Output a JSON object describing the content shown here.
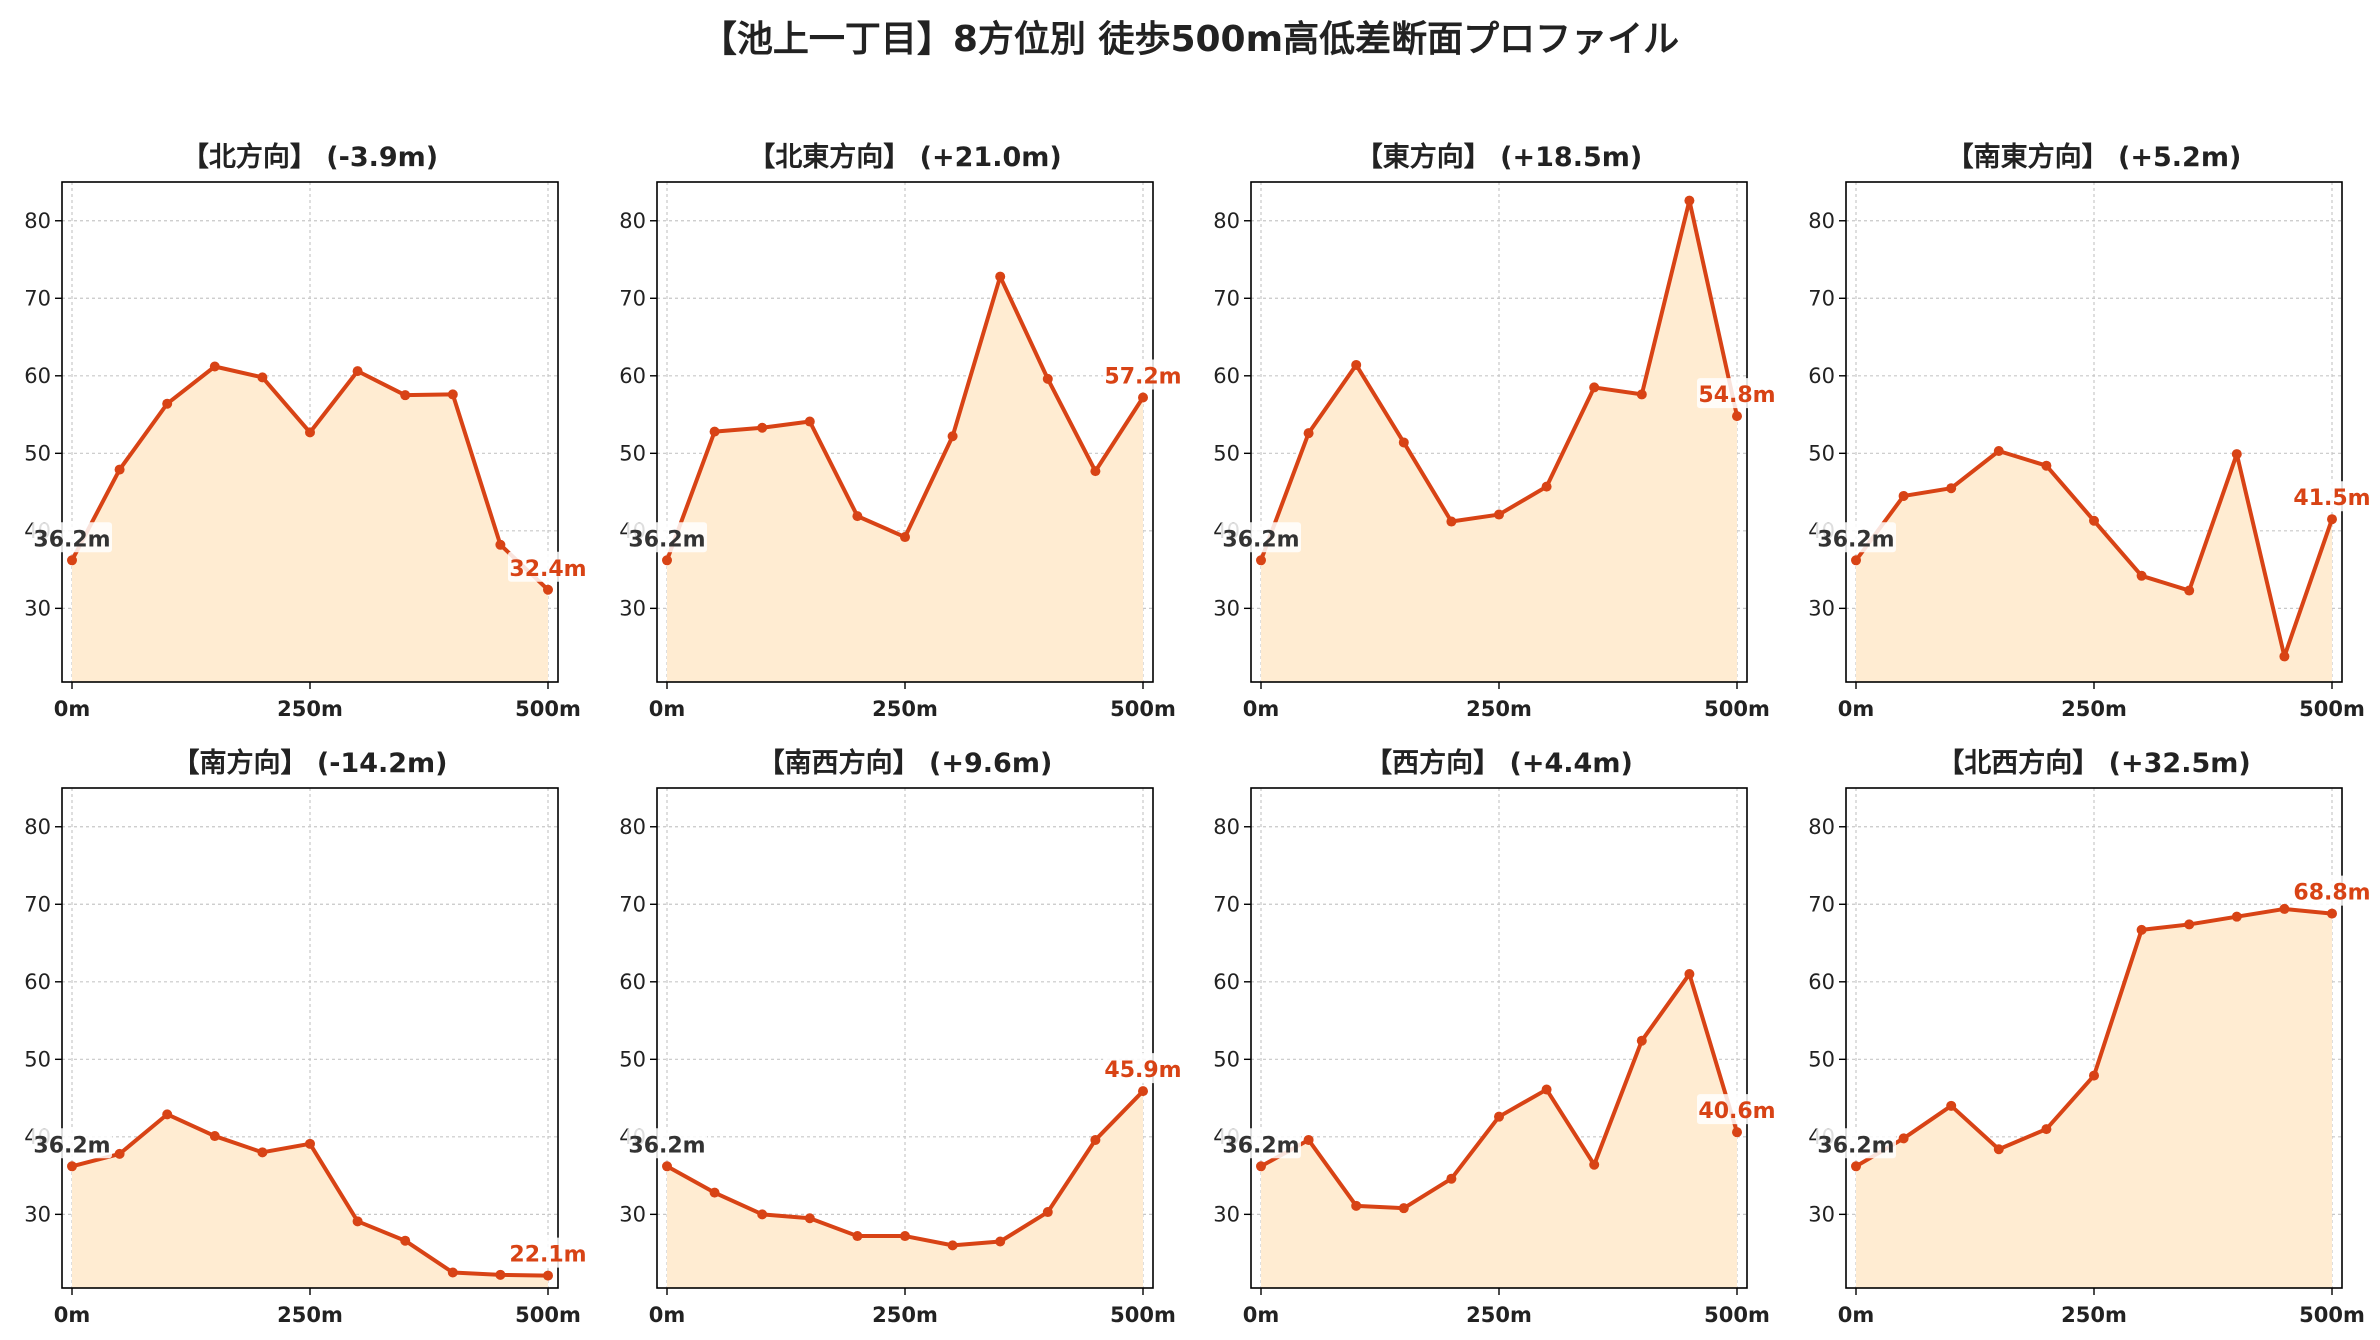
{
  "title": "【池上一丁目】8方位別 徒歩500m高低差断面プロファイル",
  "colors": {
    "line": "#d84315",
    "fill": "#ffecd2",
    "grid": "#c8c8c8",
    "start_label": "#333333"
  },
  "chart_data": [
    {
      "type": "area",
      "title": "【北方向】 (-3.9m)",
      "x": [
        0,
        50,
        100,
        150,
        200,
        250,
        300,
        350,
        400,
        450,
        500
      ],
      "y": [
        36.2,
        47.9,
        56.4,
        61.2,
        59.8,
        52.7,
        60.6,
        57.5,
        57.6,
        38.2,
        32.4
      ],
      "ylim": [
        20.5,
        85
      ],
      "yticks": [
        30,
        40,
        50,
        60,
        70,
        80
      ],
      "xticks": [
        0,
        250,
        500
      ],
      "xtick_labels": [
        "0m",
        "250m",
        "500m"
      ],
      "start_label": "36.2m",
      "end_label": "32.4m",
      "grid": true
    },
    {
      "type": "area",
      "title": "【北東方向】 (+21.0m)",
      "x": [
        0,
        50,
        100,
        150,
        200,
        250,
        300,
        350,
        400,
        450,
        500
      ],
      "y": [
        36.2,
        52.8,
        53.3,
        54.1,
        41.9,
        39.2,
        52.2,
        72.8,
        59.6,
        47.7,
        57.2
      ],
      "ylim": [
        20.5,
        85
      ],
      "yticks": [
        30,
        40,
        50,
        60,
        70,
        80
      ],
      "xticks": [
        0,
        250,
        500
      ],
      "xtick_labels": [
        "0m",
        "250m",
        "500m"
      ],
      "start_label": "36.2m",
      "end_label": "57.2m",
      "grid": true
    },
    {
      "type": "area",
      "title": "【東方向】 (+18.5m)",
      "x": [
        0,
        50,
        100,
        150,
        200,
        250,
        300,
        350,
        400,
        450,
        500
      ],
      "y": [
        36.2,
        52.6,
        61.4,
        51.4,
        41.2,
        42.1,
        45.7,
        58.5,
        57.6,
        82.6,
        54.8
      ],
      "ylim": [
        20.5,
        85
      ],
      "yticks": [
        30,
        40,
        50,
        60,
        70,
        80
      ],
      "xticks": [
        0,
        250,
        500
      ],
      "xtick_labels": [
        "0m",
        "250m",
        "500m"
      ],
      "start_label": "36.2m",
      "end_label": "54.8m",
      "grid": true
    },
    {
      "type": "area",
      "title": "【南東方向】 (+5.2m)",
      "x": [
        0,
        50,
        100,
        150,
        200,
        250,
        300,
        350,
        400,
        450,
        500
      ],
      "y": [
        36.2,
        44.5,
        45.5,
        50.3,
        48.4,
        41.3,
        34.2,
        32.3,
        49.9,
        23.8,
        41.5
      ],
      "ylim": [
        20.5,
        85
      ],
      "yticks": [
        30,
        40,
        50,
        60,
        70,
        80
      ],
      "xticks": [
        0,
        250,
        500
      ],
      "xtick_labels": [
        "0m",
        "250m",
        "500m"
      ],
      "start_label": "36.2m",
      "end_label": "41.5m",
      "grid": true
    },
    {
      "type": "area",
      "title": "【南方向】 (-14.2m)",
      "x": [
        0,
        50,
        100,
        150,
        200,
        250,
        300,
        350,
        400,
        450,
        500
      ],
      "y": [
        36.2,
        37.8,
        42.9,
        40.1,
        38.0,
        39.1,
        29.1,
        26.6,
        22.5,
        22.2,
        22.1
      ],
      "ylim": [
        20.5,
        85
      ],
      "yticks": [
        30,
        40,
        50,
        60,
        70,
        80
      ],
      "xticks": [
        0,
        250,
        500
      ],
      "xtick_labels": [
        "0m",
        "250m",
        "500m"
      ],
      "start_label": "36.2m",
      "end_label": "22.1m",
      "grid": true
    },
    {
      "type": "area",
      "title": "【南西方向】 (+9.6m)",
      "x": [
        0,
        50,
        100,
        150,
        200,
        250,
        300,
        350,
        400,
        450,
        500
      ],
      "y": [
        36.2,
        32.8,
        30.0,
        29.5,
        27.2,
        27.2,
        26.0,
        26.5,
        30.3,
        39.6,
        45.9
      ],
      "ylim": [
        20.5,
        85
      ],
      "yticks": [
        30,
        40,
        50,
        60,
        70,
        80
      ],
      "xticks": [
        0,
        250,
        500
      ],
      "xtick_labels": [
        "0m",
        "250m",
        "500m"
      ],
      "start_label": "36.2m",
      "end_label": "45.9m",
      "grid": true
    },
    {
      "type": "area",
      "title": "【西方向】 (+4.4m)",
      "x": [
        0,
        50,
        100,
        150,
        200,
        250,
        300,
        350,
        400,
        450,
        500
      ],
      "y": [
        36.2,
        39.6,
        31.1,
        30.8,
        34.6,
        42.6,
        46.1,
        36.4,
        52.4,
        61.0,
        40.6
      ],
      "ylim": [
        20.5,
        85
      ],
      "yticks": [
        30,
        40,
        50,
        60,
        70,
        80
      ],
      "xticks": [
        0,
        250,
        500
      ],
      "xtick_labels": [
        "0m",
        "250m",
        "500m"
      ],
      "start_label": "36.2m",
      "end_label": "40.6m",
      "grid": true
    },
    {
      "type": "area",
      "title": "【北西方向】 (+32.5m)",
      "x": [
        0,
        50,
        100,
        150,
        200,
        250,
        300,
        350,
        400,
        450,
        500
      ],
      "y": [
        36.2,
        39.8,
        44.0,
        38.4,
        41.0,
        47.9,
        66.7,
        67.4,
        68.4,
        69.4,
        68.8
      ],
      "ylim": [
        20.5,
        85
      ],
      "yticks": [
        30,
        40,
        50,
        60,
        70,
        80
      ],
      "xticks": [
        0,
        250,
        500
      ],
      "xtick_labels": [
        "0m",
        "250m",
        "500m"
      ],
      "start_label": "36.2m",
      "end_label": "68.8m",
      "grid": true
    }
  ]
}
